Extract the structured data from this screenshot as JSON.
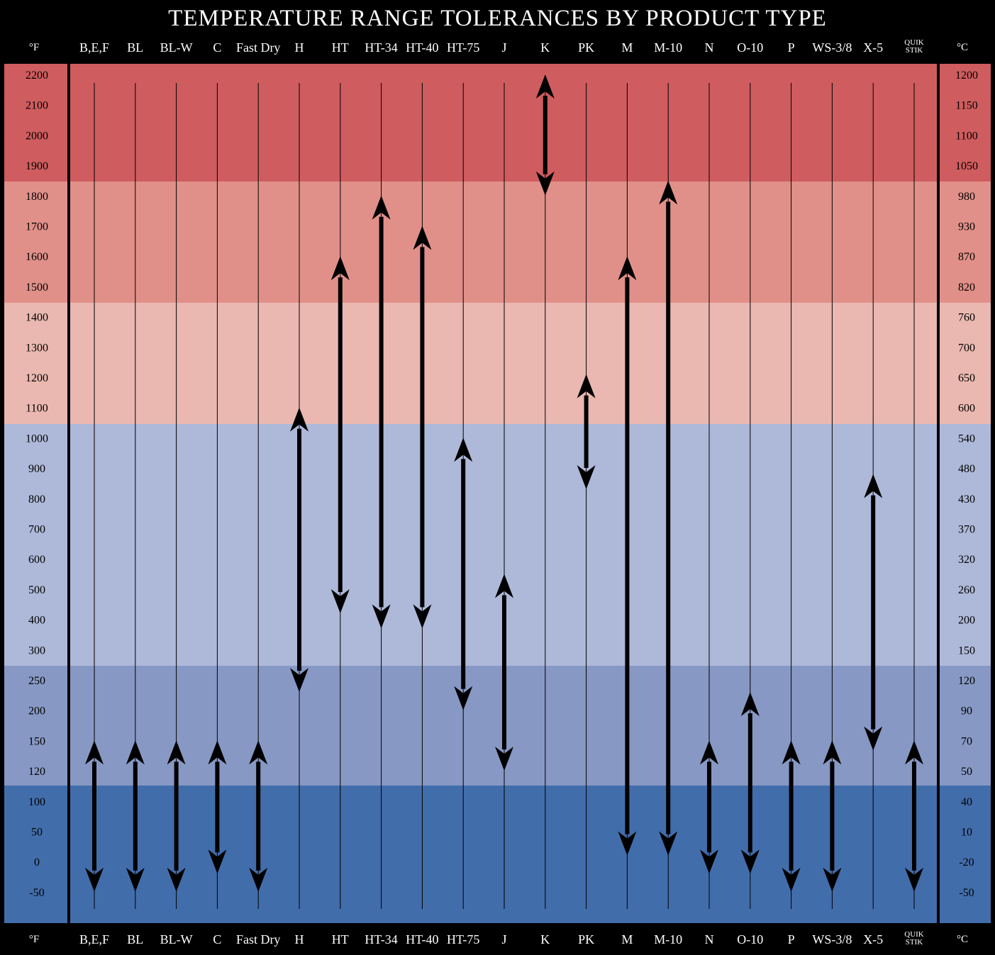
{
  "title": "TEMPERATURE RANGE TOLERANCES BY PRODUCT TYPE",
  "unit_left": "°F",
  "unit_right": "°C",
  "colors": {
    "band_very_hot": "#cf5c5e",
    "band_hot": "#e19089",
    "band_warm": "#eab8b0",
    "band_cool": "#aeb9d9",
    "band_cold": "#8798c4",
    "band_very_cold": "#426dab",
    "frame": "#000000"
  },
  "chart_data": {
    "type": "range",
    "title": "TEMPERATURE RANGE TOLERANCES BY PRODUCT TYPE",
    "y_ticks_f": [
      "2200",
      "2100",
      "2000",
      "1900",
      "1800",
      "1700",
      "1600",
      "1500",
      "1400",
      "1300",
      "1200",
      "1100",
      "1000",
      "900",
      "800",
      "700",
      "600",
      "500",
      "400",
      "300",
      "250",
      "200",
      "150",
      "120",
      "100",
      "50",
      "0",
      "-50"
    ],
    "y_ticks_c": [
      "1200",
      "1150",
      "1100",
      "1050",
      "980",
      "930",
      "870",
      "820",
      "760",
      "700",
      "650",
      "600",
      "540",
      "480",
      "430",
      "370",
      "320",
      "260",
      "200",
      "150",
      "120",
      "90",
      "70",
      "50",
      "40",
      "10",
      "-20",
      "-50"
    ],
    "categories": [
      "B,E,F",
      "BL",
      "BL-W",
      "C",
      "Fast Dry",
      "H",
      "HT",
      "HT-34",
      "HT-40",
      "HT-75",
      "J",
      "K",
      "PK",
      "M",
      "M-10",
      "N",
      "O-10",
      "P",
      "WS-3/8",
      "X-5",
      "QUIK STIK"
    ],
    "ranges_f": [
      {
        "name": "B,E,F",
        "min": -50,
        "max": 150
      },
      {
        "name": "BL",
        "min": -50,
        "max": 150
      },
      {
        "name": "BL-W",
        "min": -50,
        "max": 150
      },
      {
        "name": "C",
        "min": -20,
        "max": 150
      },
      {
        "name": "Fast Dry",
        "min": -50,
        "max": 150
      },
      {
        "name": "H",
        "min": 230,
        "max": 1100
      },
      {
        "name": "HT",
        "min": 420,
        "max": 1600
      },
      {
        "name": "HT-34",
        "min": 370,
        "max": 1800
      },
      {
        "name": "HT-40",
        "min": 370,
        "max": 1700
      },
      {
        "name": "HT-75",
        "min": 200,
        "max": 1000
      },
      {
        "name": "J",
        "min": 120,
        "max": 550
      },
      {
        "name": "K",
        "min": 1800,
        "max": 2200
      },
      {
        "name": "PK",
        "min": 830,
        "max": 1210
      },
      {
        "name": "M",
        "min": 10,
        "max": 1600
      },
      {
        "name": "M-10",
        "min": 10,
        "max": 1850
      },
      {
        "name": "N",
        "min": -20,
        "max": 150
      },
      {
        "name": "O-10",
        "min": -20,
        "max": 230
      },
      {
        "name": "P",
        "min": -50,
        "max": 150
      },
      {
        "name": "WS-3/8",
        "min": -50,
        "max": 150
      },
      {
        "name": "X-5",
        "min": 140,
        "max": 880
      },
      {
        "name": "QUIK STIK",
        "min": -50,
        "max": 150
      }
    ],
    "bands": [
      {
        "from": "2200",
        "to": "1900",
        "color": "#cf5c5e"
      },
      {
        "from": "1800",
        "to": "1500",
        "color": "#e19089"
      },
      {
        "from": "1400",
        "to": "1100",
        "color": "#eab8b0"
      },
      {
        "from": "1000",
        "to": "300",
        "color": "#aeb9d9"
      },
      {
        "from": "250",
        "to": "120",
        "color": "#8798c4"
      },
      {
        "from": "100",
        "to": "-50",
        "color": "#426dab"
      }
    ]
  }
}
